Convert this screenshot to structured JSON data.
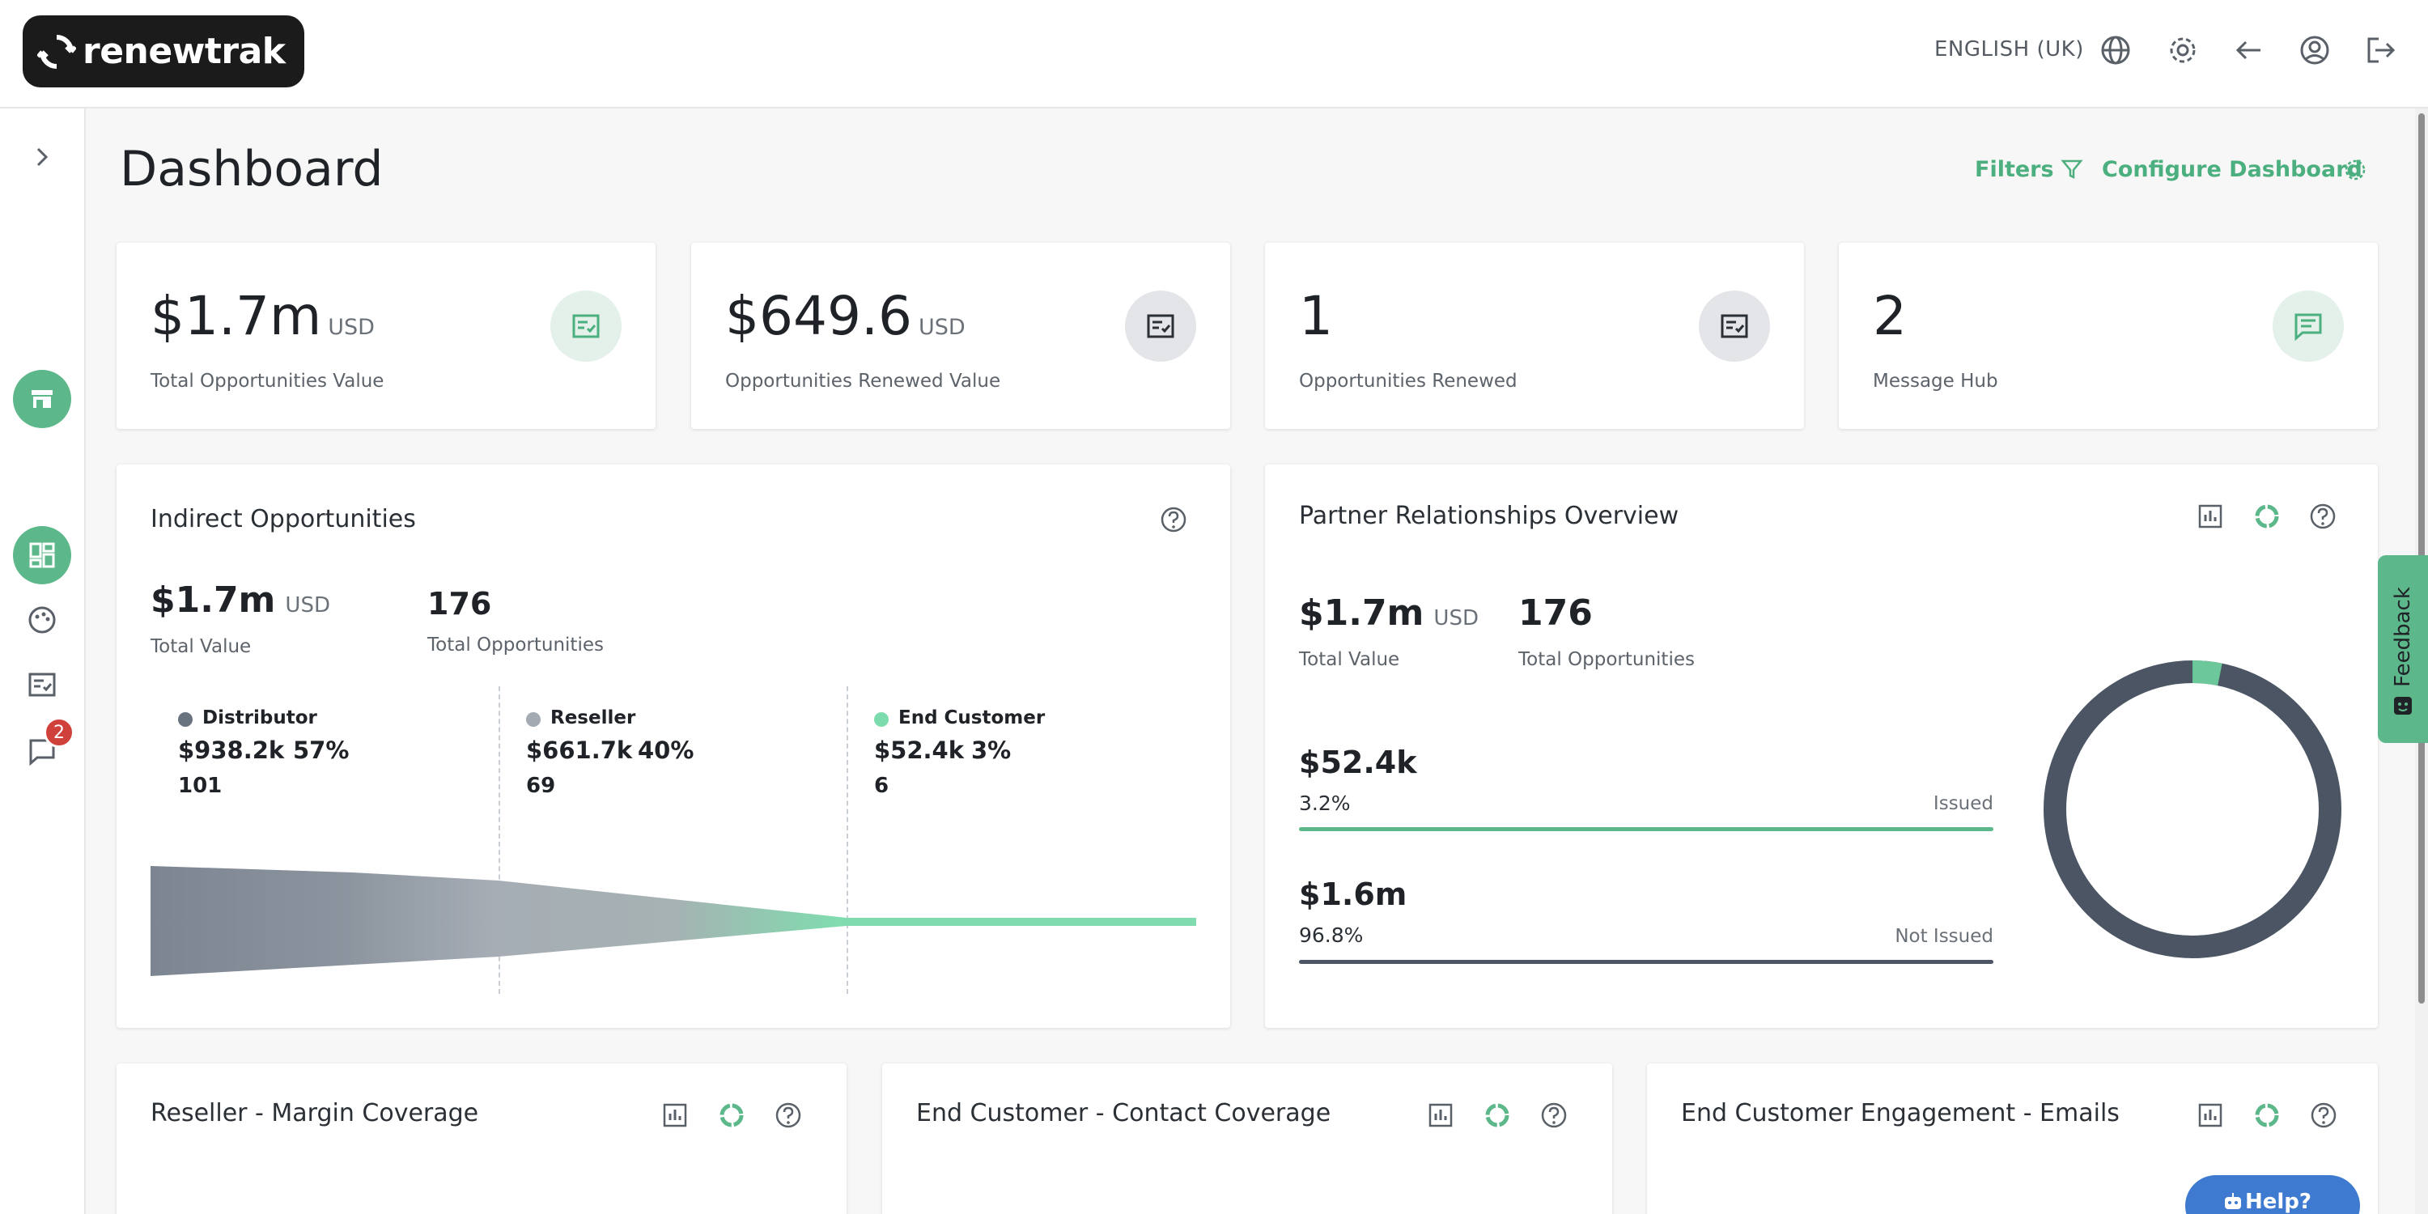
{
  "app": {
    "brand": "renewtrak"
  },
  "header": {
    "language": "ENGLISH (UK)",
    "icons": [
      "globe-icon",
      "gear-icon",
      "back-arrow-icon",
      "user-circle-icon",
      "logout-icon"
    ]
  },
  "sidebar": {
    "items": [
      {
        "icon": "chevron-right-icon"
      },
      {
        "icon": "storefront-icon",
        "active": true
      },
      {
        "icon": "dashboard-icon",
        "active": true
      },
      {
        "icon": "palette-icon"
      },
      {
        "icon": "checklist-icon"
      },
      {
        "icon": "chat-icon",
        "badge": "2"
      }
    ]
  },
  "page": {
    "title": "Dashboard",
    "filters_label": "Filters",
    "configure_label": "Configure Dashboard"
  },
  "kpis": [
    {
      "value": "$1.7m",
      "unit": "USD",
      "label": "Total Opportunities Value",
      "icon": "checklist-icon"
    },
    {
      "value": "$649.6",
      "unit": "USD",
      "label": "Opportunities Renewed Value",
      "icon": "checklist-icon"
    },
    {
      "value": "1",
      "unit": "",
      "label": "Opportunities Renewed",
      "icon": "checklist-icon"
    },
    {
      "value": "2",
      "unit": "",
      "label": "Message Hub",
      "icon": "message-icon"
    }
  ],
  "indirect": {
    "title": "Indirect Opportunities",
    "total_value": "$1.7m",
    "unit": "USD",
    "total_value_label": "Total Value",
    "total_opps": "176",
    "total_opps_label": "Total Opportunities",
    "segments": [
      {
        "name": "Distributor",
        "value": "$938.2k",
        "pct": "57%",
        "count": "101",
        "color": "#69727f"
      },
      {
        "name": "Reseller",
        "value": "$661.7k",
        "pct": "40%",
        "count": "69",
        "color": "#a3aab2"
      },
      {
        "name": "End Customer",
        "value": "$52.4k",
        "pct": "3%",
        "count": "6",
        "color": "#7ddcae"
      }
    ]
  },
  "partner": {
    "title": "Partner Relationships Overview",
    "total_value": "$1.7m",
    "unit": "USD",
    "total_value_label": "Total Value",
    "total_opps": "176",
    "total_opps_label": "Total Opportunities",
    "rows": [
      {
        "value": "$52.4k",
        "pct": "3.2%",
        "label": "Issued",
        "color": "#5cb88a"
      },
      {
        "value": "$1.6m",
        "pct": "96.8%",
        "label": "Not Issued",
        "color": "#4b5563"
      }
    ],
    "donut": {
      "issued_fraction": 0.032,
      "colors": {
        "issued": "#6cc79a",
        "not_issued": "#4b5563"
      }
    }
  },
  "bottom_cards": [
    {
      "title": "Reseller - Margin Coverage"
    },
    {
      "title": "End Customer - Contact Coverage"
    },
    {
      "title": "End Customer Engagement - Emails"
    }
  ],
  "feedback_label": "Feedback",
  "help_label": "Help?",
  "colors": {
    "accent": "#5cb88a",
    "dark": "#1b1b1b",
    "badge": "#d0413b",
    "help": "#3e7ad0"
  }
}
